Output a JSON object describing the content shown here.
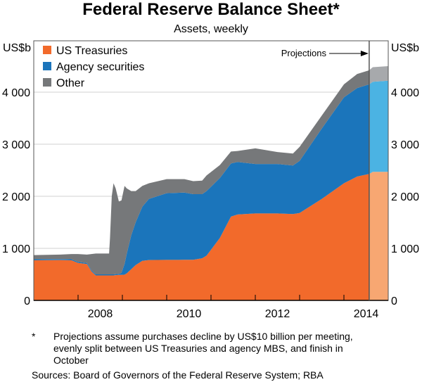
{
  "chart_data": {
    "type": "area",
    "stacked": true,
    "title": "Federal Reserve Balance Sheet*",
    "subtitle": "Assets, weekly",
    "ylabel_left": "US$b",
    "ylabel_right": "US$b",
    "ylim": [
      0,
      5000
    ],
    "yticks": [
      0,
      1000,
      2000,
      3000,
      4000
    ],
    "ytick_labels": [
      "0",
      "1 000",
      "2 000",
      "3 000",
      "4 000"
    ],
    "xlim": [
      2007.0,
      2015.0
    ],
    "xtick_labels": [
      "2008",
      "2010",
      "2012",
      "2014"
    ],
    "grid": true,
    "legend_position": "top-left",
    "annotation": "Projections",
    "projection_start": 2014.57,
    "series": [
      {
        "name": "US Treasuries",
        "color": "#f26a2b",
        "projected_color": "#f7a772"
      },
      {
        "name": "Agency securities",
        "color": "#1b75bb",
        "projected_color": "#4bb3e3"
      },
      {
        "name": "Other",
        "color": "#76787a",
        "projected_color": "#a7a9ac"
      }
    ],
    "x": [
      2007.0,
      2007.6,
      2007.85,
      2008.0,
      2008.2,
      2008.3,
      2008.4,
      2008.7,
      2008.72,
      2008.76,
      2008.8,
      2008.85,
      2008.92,
      2008.98,
      2009.05,
      2009.1,
      2009.2,
      2009.3,
      2009.45,
      2009.6,
      2010.0,
      2010.4,
      2010.6,
      2010.8,
      2010.9,
      2011.2,
      2011.45,
      2011.6,
      2012.0,
      2012.5,
      2012.85,
      2013.0,
      2013.5,
      2014.0,
      2014.3,
      2014.57,
      2014.65,
      2015.0
    ],
    "treasuries": [
      770,
      775,
      770,
      720,
      700,
      560,
      480,
      480,
      480,
      480,
      480,
      485,
      490,
      490,
      495,
      520,
      600,
      680,
      760,
      775,
      778,
      780,
      780,
      810,
      860,
      1200,
      1610,
      1650,
      1670,
      1670,
      1660,
      1680,
      1950,
      2250,
      2380,
      2430,
      2470,
      2470
    ],
    "agency": [
      20,
      20,
      20,
      20,
      20,
      20,
      20,
      20,
      20,
      20,
      20,
      20,
      20,
      40,
      205,
      380,
      650,
      820,
      1040,
      1175,
      1282,
      1290,
      1260,
      1230,
      1240,
      1150,
      1020,
      1010,
      950,
      950,
      930,
      1000,
      1350,
      1650,
      1700,
      1720,
      1730,
      1750
    ],
    "other": [
      80,
      85,
      100,
      150,
      160,
      310,
      400,
      400,
      700,
      1500,
      1750,
      1645,
      1390,
      1390,
      1500,
      1250,
      850,
      600,
      400,
      300,
      270,
      260,
      250,
      260,
      300,
      250,
      230,
      210,
      300,
      230,
      230,
      270,
      250,
      250,
      270,
      270,
      280,
      280
    ]
  },
  "footnote": {
    "marker": "*",
    "lines": [
      "Projections assume purchases decline by US$10 billion per meeting,",
      "evenly split between US Treasuries and agency MBS, and finish in",
      "October"
    ]
  },
  "sources": "Sources:  Board of Governors of the Federal Reserve System; RBA"
}
